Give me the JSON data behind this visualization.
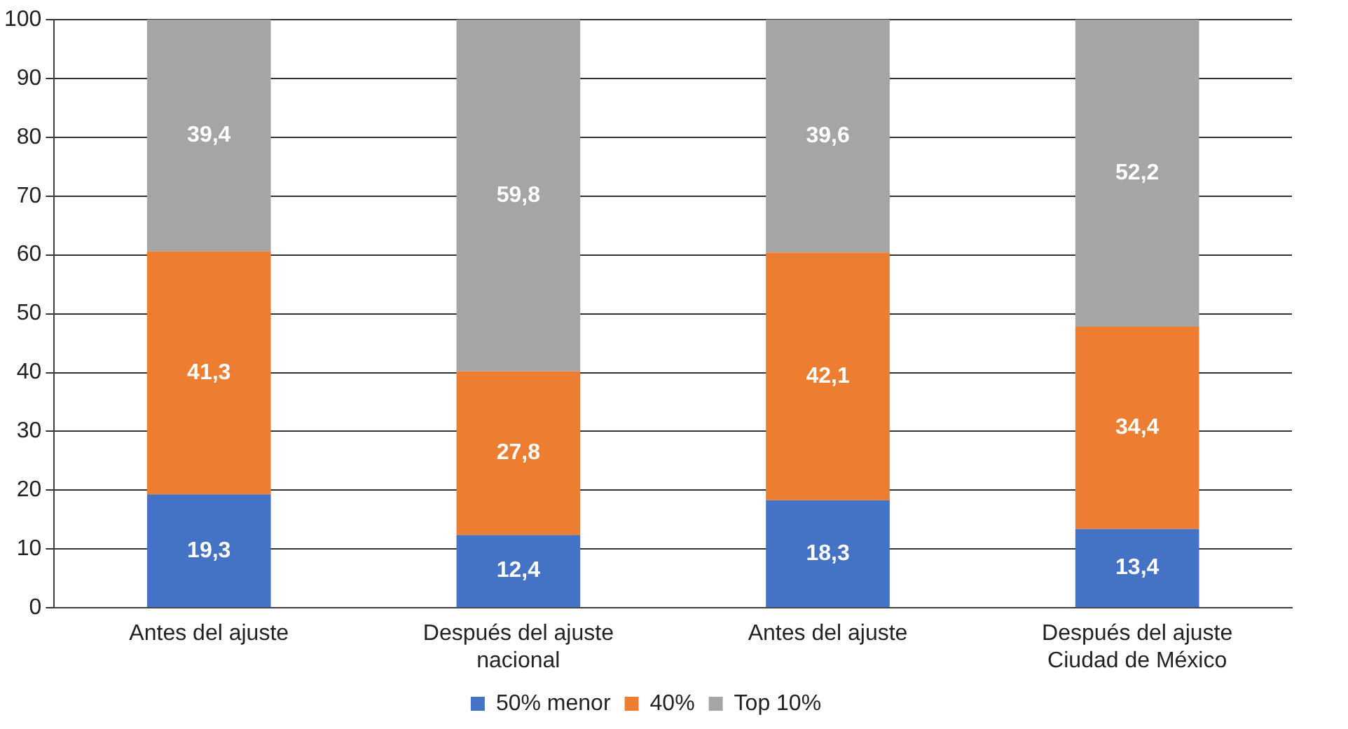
{
  "chart_data": {
    "type": "bar",
    "stacked": true,
    "categories": [
      "Antes del ajuste",
      "Después del ajuste\nnacional",
      "Antes del ajuste",
      "Después del ajuste\nCiudad de México"
    ],
    "series": [
      {
        "name": "50% menor",
        "color": "#4472c4",
        "values": [
          19.3,
          12.4,
          18.3,
          13.4
        ],
        "value_labels": [
          "19,3",
          "12,4",
          "18,3",
          "13,4"
        ]
      },
      {
        "name": "40%",
        "color": "#ed7d31",
        "values": [
          41.3,
          27.8,
          42.1,
          34.4
        ],
        "value_labels": [
          "41,3",
          "27,8",
          "42,1",
          "34,4"
        ]
      },
      {
        "name": "Top 10%",
        "color": "#a5a5a5",
        "values": [
          39.4,
          59.8,
          39.6,
          52.2
        ],
        "value_labels": [
          "39,4",
          "59,8",
          "39,6",
          "52,2"
        ]
      }
    ],
    "ylim": [
      0,
      100
    ],
    "yticks": [
      0,
      10,
      20,
      30,
      40,
      50,
      60,
      70,
      80,
      90,
      100
    ],
    "grid": "y",
    "legend": "bottom"
  }
}
